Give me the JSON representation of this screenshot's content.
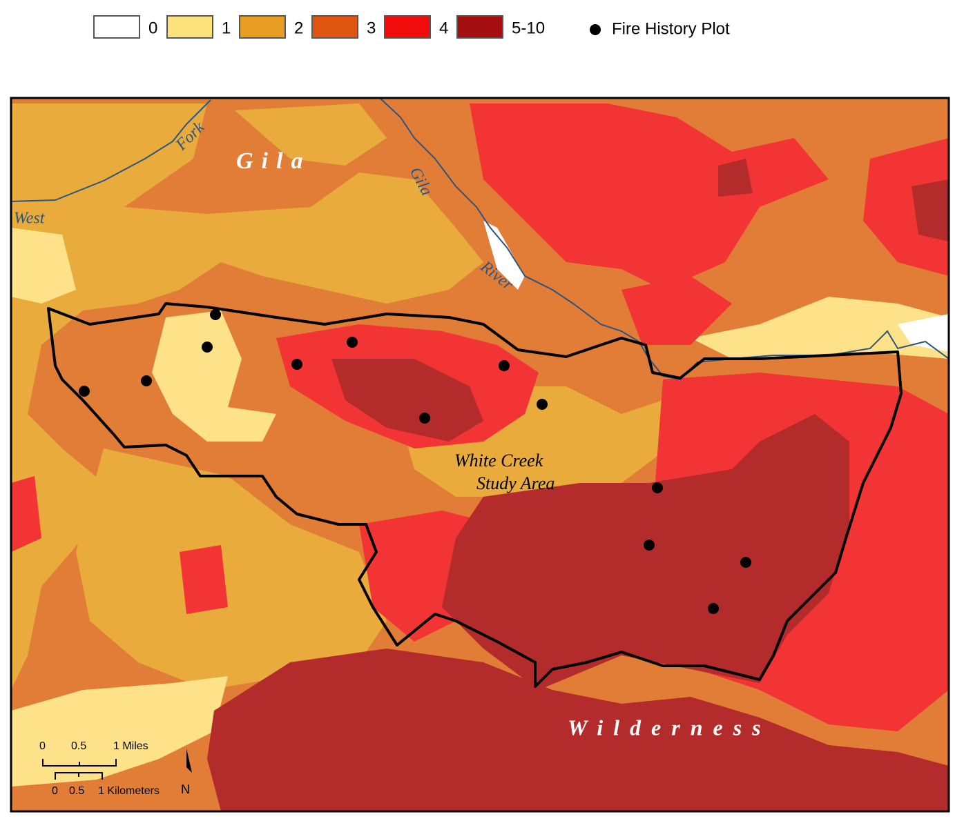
{
  "legend": {
    "items": [
      {
        "label": "0",
        "color": "#ffffff"
      },
      {
        "label": "1",
        "color": "#fde27c"
      },
      {
        "label": "2",
        "color": "#e89e22"
      },
      {
        "label": "3",
        "color": "#e05510"
      },
      {
        "label": "4",
        "color": "#f20d0d"
      },
      {
        "label": "5-10",
        "color": "#a50e0e"
      }
    ],
    "point_label": "Fire History Plot"
  },
  "map_labels": {
    "gila_region": "Gila",
    "fork": "Fork",
    "west": "West",
    "gila_river_1": "Gila",
    "gila_river_2": "River",
    "study_area_1": "White Creek",
    "study_area_2": "Study Area",
    "wilderness": "Wilderness"
  },
  "scale_bar": {
    "miles": [
      "0",
      "0.5",
      "1 Miles"
    ],
    "kilometers": [
      "0",
      "0.5",
      "1 Kilometers"
    ],
    "north": "N"
  }
}
